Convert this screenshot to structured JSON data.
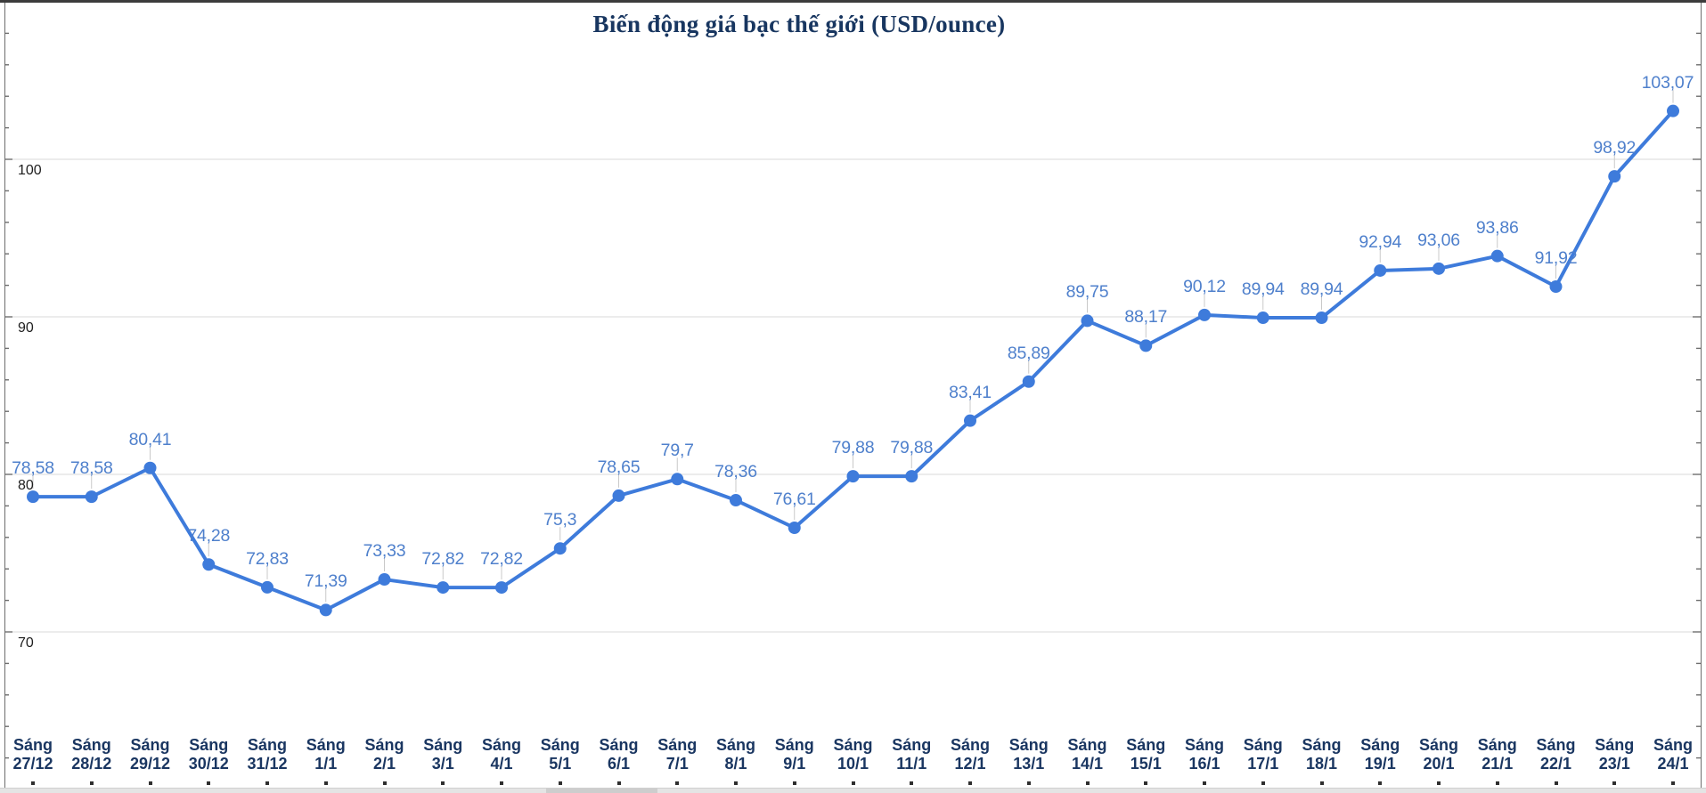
{
  "title": "Biến động giá bạc thế giới (USD/ounce)",
  "chart_data": {
    "type": "line",
    "title": "Biến động giá bạc thế giới (USD/ounce)",
    "x_prefix": "Sáng",
    "categories": [
      "27/12",
      "28/12",
      "29/12",
      "30/12",
      "31/12",
      "1/1",
      "2/1",
      "3/1",
      "4/1",
      "5/1",
      "6/1",
      "7/1",
      "8/1",
      "9/1",
      "10/1",
      "11/1",
      "12/1",
      "13/1",
      "14/1",
      "15/1",
      "16/1",
      "17/1",
      "18/1",
      "19/1",
      "20/1",
      "21/1",
      "22/1",
      "23/1",
      "24/1"
    ],
    "values": [
      78.58,
      78.58,
      80.41,
      74.28,
      72.83,
      71.39,
      73.33,
      72.82,
      72.82,
      75.3,
      78.65,
      79.7,
      78.36,
      76.61,
      79.88,
      79.88,
      83.41,
      85.89,
      89.75,
      88.17,
      90.12,
      89.94,
      89.94,
      92.94,
      93.06,
      93.86,
      91.92,
      98.92,
      103.07
    ],
    "point_labels": [
      "78,58",
      "78,58",
      "80,41",
      "74,28",
      "72,83",
      "71,39",
      "73,33",
      "72,82",
      "72,82",
      "75,3",
      "78,65",
      "79,7",
      "78,36",
      "76,61",
      "79,88",
      "79,88",
      "83,41",
      "85,89",
      "89,75",
      "88,17",
      "90,12",
      "89,94",
      "89,94",
      "92,94",
      "93,06",
      "93,86",
      "91,92",
      "98,92",
      "103,07"
    ],
    "yticks": [
      70,
      80,
      90,
      100
    ],
    "ylim": [
      60,
      110
    ],
    "grid": "horizontal-only",
    "legend": "none",
    "colors": {
      "series": "#3e7bdb",
      "point_label": "#4f80cc",
      "category_label": "#1a3661",
      "gridline": "#d9d9d9",
      "axis": "#6e6e6e",
      "leader_line": "#c9c9c9",
      "title": "#183660"
    }
  }
}
